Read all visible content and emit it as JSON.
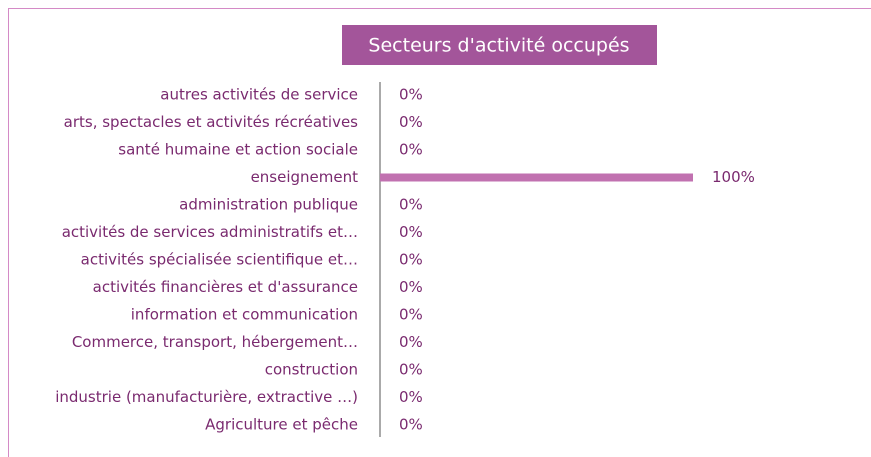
{
  "chart_data": {
    "type": "hbar",
    "title": "Secteurs d'activité occupés",
    "categories": [
      "autres activités de service",
      "arts, spectacles et activités récréatives",
      "santé humaine et action sociale",
      "enseignement",
      "administration publique",
      "activités de services administratifs et…",
      "activités spécialisée scientifique et…",
      "activités financières et d'assurance",
      "information et communication",
      "Commerce, transport, hébergement…",
      "construction",
      "industrie (manufacturière, extractive …)",
      "Agriculture et pêche"
    ],
    "values": [
      0,
      0,
      0,
      100,
      0,
      0,
      0,
      0,
      0,
      0,
      0,
      0,
      0
    ],
    "value_labels": [
      "0%",
      "0%",
      "0%",
      "100%",
      "0%",
      "0%",
      "0%",
      "0%",
      "0%",
      "0%",
      "0%",
      "0%",
      "0%"
    ],
    "color": "#c171b0"
  }
}
